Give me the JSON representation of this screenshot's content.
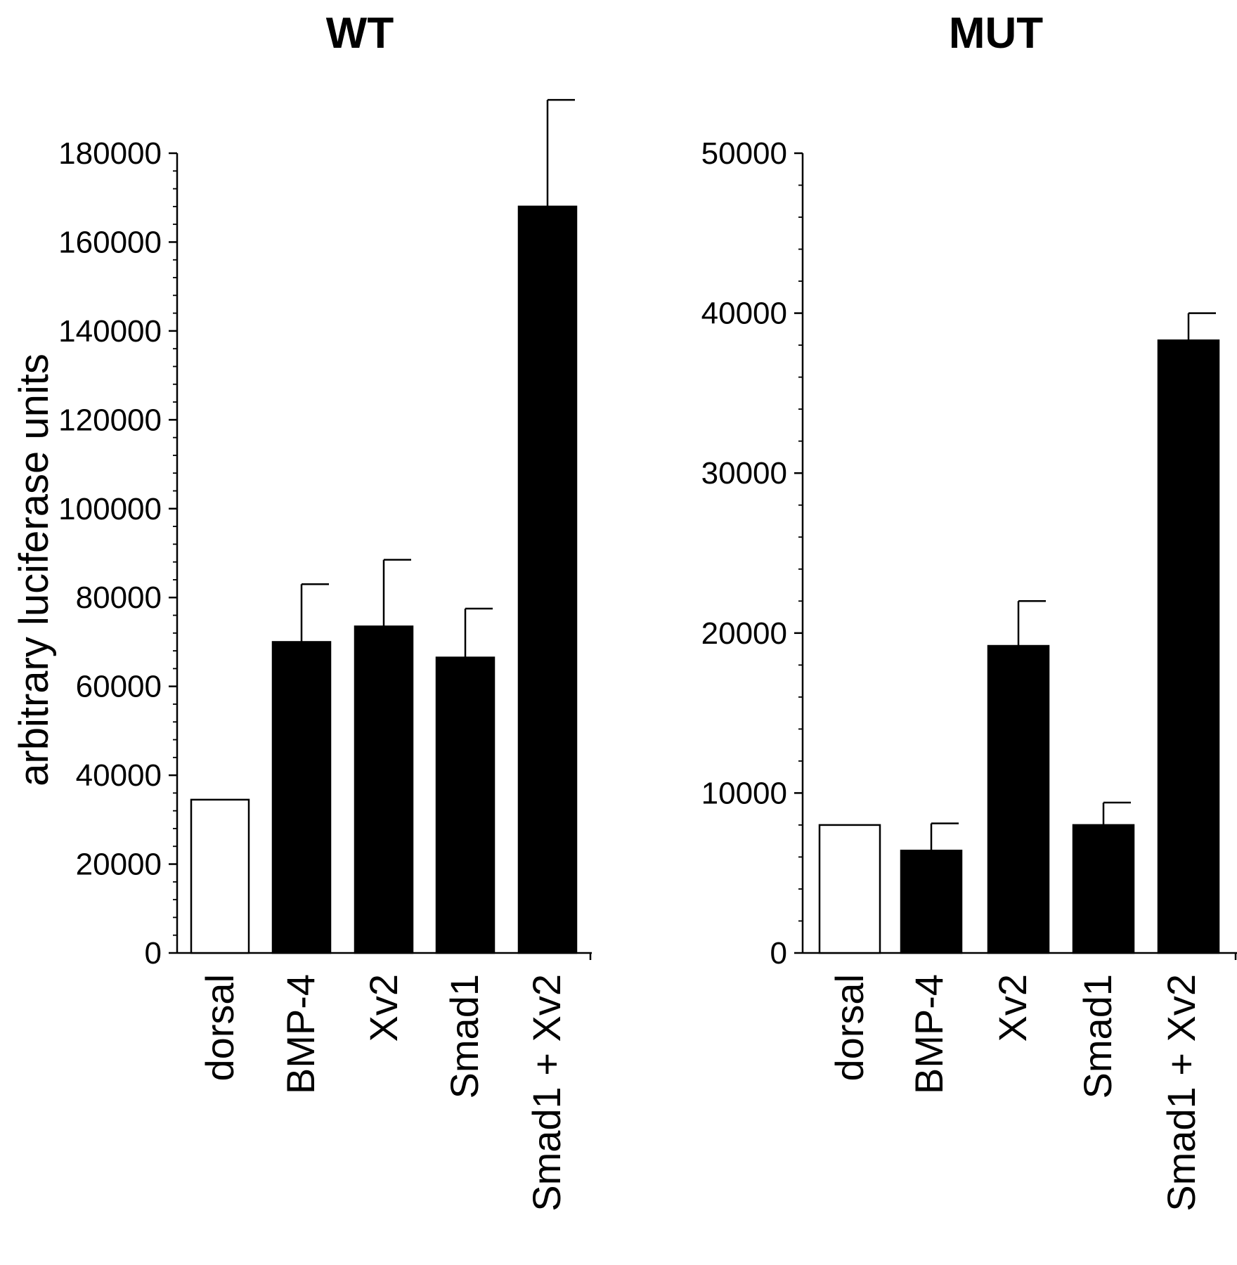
{
  "chart_data": [
    {
      "type": "bar",
      "title": "WT",
      "ylabel": "arbitrary luciferase units",
      "xlabel": "",
      "categories": [
        "dorsal",
        "BMP-4",
        "Xv2",
        "Smad1",
        "Smad1 + Xv2"
      ],
      "values": [
        34500,
        70000,
        73500,
        66500,
        168000
      ],
      "errors": [
        0,
        13000,
        15000,
        11000,
        24000
      ],
      "fills": [
        "#ffffff",
        "#000000",
        "#000000",
        "#000000",
        "#000000"
      ],
      "ylim": [
        0,
        180000
      ],
      "yticks": [
        0,
        20000,
        40000,
        60000,
        80000,
        100000,
        120000,
        140000,
        160000,
        180000
      ],
      "ytick_labels": [
        "0",
        "20000",
        "40000",
        "60000",
        "80000",
        "100000",
        "120000",
        "140000",
        "160000",
        "180000"
      ],
      "minor_per_major": 5,
      "grid": false
    },
    {
      "type": "bar",
      "title": "MUT",
      "ylabel": "",
      "xlabel": "",
      "categories": [
        "dorsal",
        "BMP-4",
        "Xv2",
        "Smad1",
        "Smad1 + Xv2"
      ],
      "values": [
        8000,
        6400,
        19200,
        8000,
        38300
      ],
      "errors": [
        0,
        1700,
        2800,
        1400,
        1700
      ],
      "fills": [
        "#ffffff",
        "#000000",
        "#000000",
        "#000000",
        "#000000"
      ],
      "ylim": [
        0,
        50000
      ],
      "yticks": [
        0,
        10000,
        20000,
        30000,
        40000,
        50000
      ],
      "ytick_labels": [
        "0",
        "10000",
        "20000",
        "30000",
        "40000",
        "50000"
      ],
      "minor_per_major": 5,
      "grid": false
    }
  ],
  "colors": {
    "bar_outline": "#000000",
    "axis": "#000000",
    "background": "#ffffff"
  }
}
